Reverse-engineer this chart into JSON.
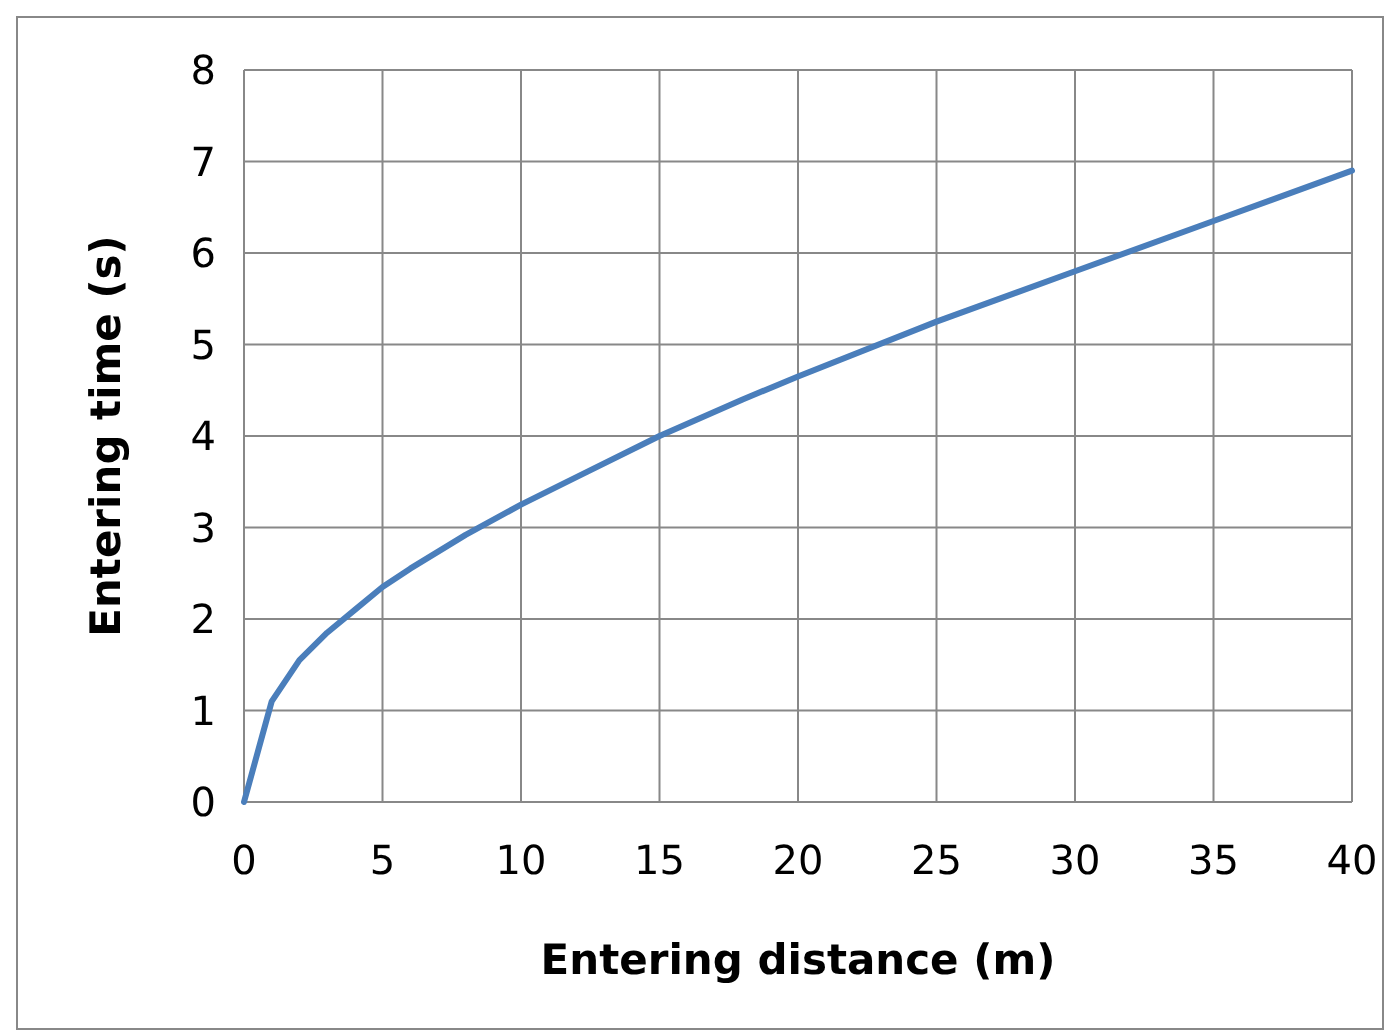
{
  "chart_data": {
    "type": "line",
    "xlabel": "Entering distance (m)",
    "ylabel": "Entering time (s)",
    "x": [
      0,
      1,
      2,
      3,
      4,
      5,
      6,
      8,
      10,
      12,
      15,
      18,
      20,
      25,
      30,
      35,
      40
    ],
    "series": [
      {
        "color": "#4a7ebb",
        "values": [
          0,
          1.1,
          1.55,
          1.85,
          2.1,
          2.35,
          2.55,
          2.92,
          3.25,
          3.55,
          4.0,
          4.4,
          4.65,
          5.25,
          5.8,
          6.35,
          6.9
        ]
      }
    ],
    "xlim": [
      0,
      40
    ],
    "xticks": [
      0,
      5,
      10,
      15,
      20,
      25,
      30,
      35,
      40
    ],
    "ylim": [
      0,
      8
    ],
    "yticks": [
      0,
      1,
      2,
      3,
      4,
      5,
      6,
      7,
      8
    ],
    "grid": true,
    "marker": "none",
    "line_style": "solid"
  }
}
